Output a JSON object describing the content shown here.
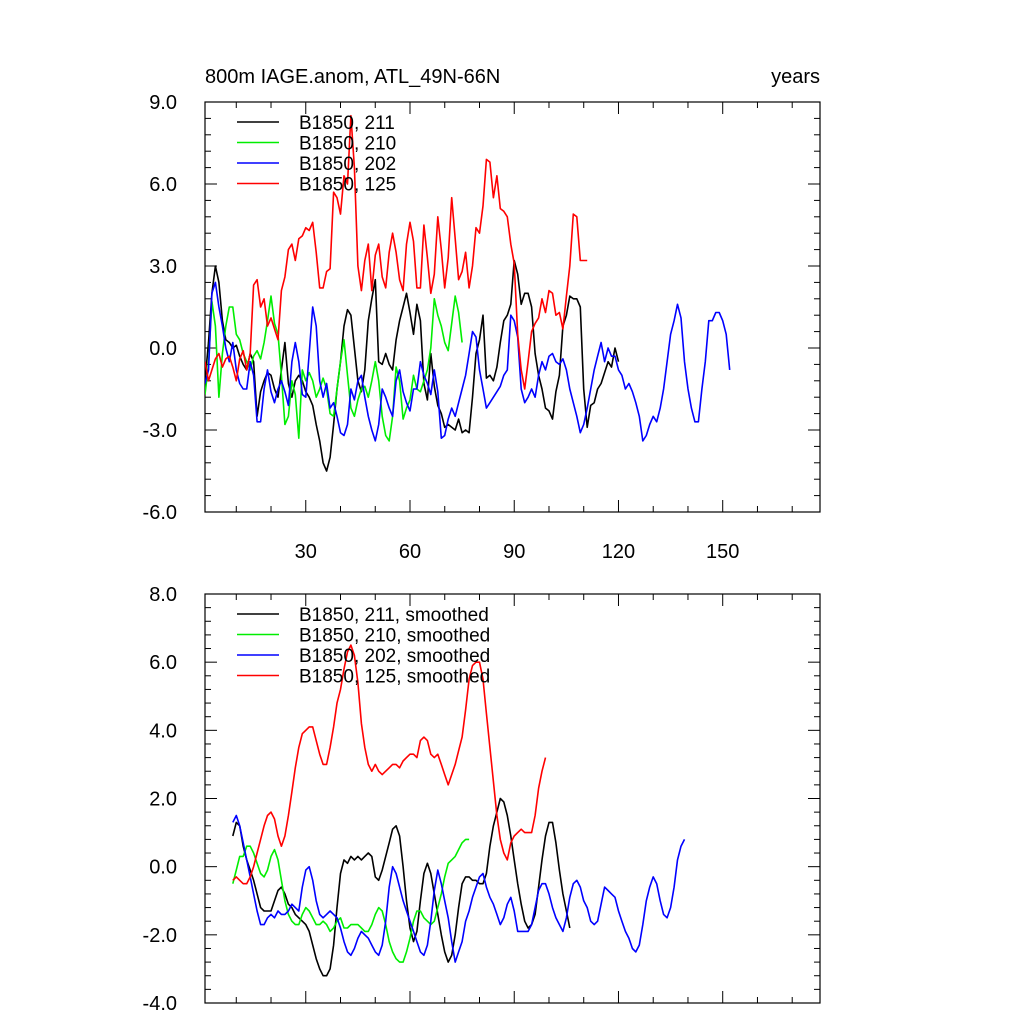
{
  "chart_data": [
    {
      "type": "line",
      "title": "800m IAGE.anom, ATL_49N-66N",
      "right_title": "years",
      "xlabel": "",
      "ylabel": "",
      "xlim": [
        1,
        178
      ],
      "ylim": [
        -6,
        9
      ],
      "y_ticks": [
        "-6.0",
        "-3.0",
        "0.0",
        "3.0",
        "6.0",
        "9.0"
      ],
      "x_ticks": [
        "30",
        "60",
        "90",
        "120",
        "150"
      ],
      "legend_position": "top-left",
      "series": [
        {
          "name": "B1850, 211",
          "color": "#000000",
          "x0": 1,
          "values": [
            -1.2,
            0.2,
            2.0,
            3.0,
            2.4,
            1.0,
            0.3,
            0.2,
            0.0,
            0.1,
            -0.3,
            -0.6,
            -0.8,
            -0.2,
            -0.5,
            -2.5,
            -1.6,
            -1.2,
            -0.9,
            -1.0,
            -1.5,
            -1.8,
            -0.8,
            0.2,
            -1.3,
            -1.8,
            -1.2,
            -1.0,
            -1.2,
            -1.6,
            -1.8,
            -2.1,
            -2.8,
            -3.4,
            -4.2,
            -4.5,
            -4.0,
            -2.8,
            -1.5,
            -0.5,
            0.8,
            1.4,
            1.2,
            0.0,
            -1.2,
            -1.6,
            -0.8,
            1.0,
            1.8,
            2.5,
            -0.5,
            -0.6,
            -0.2,
            -0.6,
            -0.8,
            0.3,
            1.0,
            1.5,
            2.0,
            1.3,
            0.5,
            1.6,
            1.0,
            -1.3,
            -1.9,
            -0.2,
            -1.4,
            -2.1,
            -2.4,
            -2.9,
            -2.8,
            -2.9,
            -3.0,
            -2.6,
            -3.1,
            -3.0,
            -3.1,
            -1.8,
            -0.2,
            0.3,
            1.2,
            -1.1,
            -1.0,
            -1.2,
            -0.7,
            0.2,
            1.0,
            1.2,
            1.6,
            3.2,
            2.7,
            1.6,
            2.0,
            2.0,
            1.5,
            -0.2,
            -1.0,
            -1.5,
            -2.2,
            -2.3,
            -2.6,
            -1.6,
            -1.0,
            0.8,
            1.2,
            1.9,
            1.8,
            1.8,
            1.5,
            -1.5,
            -2.9,
            -2.1,
            -2.0,
            -1.5,
            -1.3,
            -0.9,
            -0.5,
            -0.7,
            0.0,
            -0.5
          ]
        },
        {
          "name": "B1850, 210",
          "color": "#00ee00",
          "x0": 1,
          "values": [
            -1.7,
            -0.6,
            1.7,
            0.8,
            -1.8,
            -0.2,
            0.8,
            1.5,
            1.5,
            0.5,
            0.3,
            -0.2,
            -0.5,
            -0.8,
            -0.3,
            -0.1,
            -0.4,
            0.2,
            1.0,
            1.9,
            0.9,
            0.5,
            -1.0,
            -2.8,
            -2.5,
            -1.2,
            -1.7,
            -3.3,
            -0.8,
            -1.2,
            -0.9,
            -1.2,
            -1.8,
            -1.5,
            -1.1,
            -1.5,
            -2.4,
            -2.5,
            -1.5,
            -0.5,
            0.3,
            -1.0,
            -2.2,
            -2.5,
            -1.9,
            -1.5,
            -1.4,
            -1.8,
            -1.2,
            -0.5,
            -1.2,
            -2.5,
            -3.2,
            -3.4,
            -2.5,
            -0.7,
            -1.2,
            -2.6,
            -2.2,
            -1.9,
            -1.0,
            -1.5,
            -1.6,
            -1.2,
            -0.8,
            0.0,
            1.8,
            1.2,
            0.8,
            0.2,
            -0.1,
            0.9,
            1.9,
            1.3,
            0.2
          ]
        },
        {
          "name": "B1850, 202",
          "color": "#0000ff",
          "x0": 1,
          "values": [
            -1.3,
            -0.8,
            2.0,
            2.4,
            1.5,
            0.8,
            0.0,
            -0.5,
            0.2,
            -0.8,
            -1.3,
            -1.5,
            -1.5,
            -0.5,
            -1.0,
            -2.7,
            -2.7,
            -1.5,
            -0.8,
            -1.6,
            -2.0,
            -1.5,
            -1.2,
            -1.6,
            -2.1,
            -0.5,
            0.2,
            -0.5,
            -1.7,
            -1.8,
            -0.2,
            1.5,
            0.8,
            -1.2,
            -1.8,
            -1.3,
            -2.2,
            -2.0,
            -2.5,
            -3.1,
            -3.2,
            -2.8,
            -1.5,
            -1.9,
            -1.2,
            -1.0,
            -1.8,
            -2.5,
            -3.0,
            -3.4,
            -2.8,
            -1.5,
            -1.8,
            -2.2,
            -2.5,
            -1.2,
            -0.8,
            -1.6,
            -2.0,
            -2.3,
            -1.5,
            -1.5,
            -0.5,
            -1.0,
            -1.3,
            -1.7,
            -0.8,
            -1.6,
            -3.3,
            -3.2,
            -2.6,
            -2.2,
            -2.5,
            -2.0,
            -1.5,
            -1.0,
            -0.2,
            0.6,
            0.4,
            -0.8,
            -1.5,
            -2.2,
            -2.0,
            -1.8,
            -1.6,
            -1.4,
            -1.0,
            -0.8,
            1.2,
            1.0,
            0.4,
            -1.5,
            -2.0,
            -1.8,
            -1.5,
            -1.8,
            -1.0,
            -0.5,
            -0.8,
            -0.3,
            -0.2,
            -0.5,
            -0.6,
            -0.4,
            -0.8,
            -1.5,
            -2.0,
            -2.5,
            -3.1,
            -2.8,
            -2.2,
            -1.5,
            -0.8,
            -0.3,
            0.2,
            -0.5,
            0.0,
            -0.3,
            -0.3,
            -0.8,
            -1.0,
            -1.5,
            -1.3,
            -1.6,
            -2.0,
            -2.5,
            -3.4,
            -3.2,
            -2.8,
            -2.5,
            -2.7,
            -2.2,
            -1.5,
            -0.5,
            0.5,
            1.0,
            1.6,
            1.1,
            -0.5,
            -1.5,
            -2.2,
            -2.7,
            -2.7,
            -1.5,
            -0.5,
            1.0,
            1.0,
            1.3,
            1.3,
            1.0,
            0.5,
            -0.8
          ]
        },
        {
          "name": "B1850, 125",
          "color": "#ff0000",
          "x0": 1,
          "values": [
            -0.5,
            -1.2,
            -0.8,
            -0.4,
            -0.2,
            -0.7,
            -0.4,
            -0.3,
            -0.7,
            -1.2,
            -0.4,
            -0.1,
            -0.8,
            -0.2,
            2.3,
            2.5,
            1.5,
            1.8,
            0.8,
            1.1,
            0.7,
            0.3,
            2.1,
            2.6,
            3.6,
            3.8,
            3.2,
            4.0,
            4.1,
            4.4,
            4.3,
            4.6,
            3.5,
            2.2,
            2.2,
            2.8,
            2.9,
            5.7,
            5.5,
            4.9,
            6.3,
            6.0,
            8.5,
            6.6,
            3.0,
            2.1,
            3.2,
            3.8,
            2.1,
            3.4,
            3.8,
            2.6,
            2.2,
            3.5,
            4.2,
            3.5,
            2.5,
            2.1,
            3.8,
            4.6,
            3.9,
            2.2,
            2.2,
            4.5,
            3.3,
            2.0,
            2.7,
            4.8,
            3.6,
            2.2,
            3.3,
            5.5,
            4.0,
            2.5,
            2.8,
            3.5,
            2.2,
            3.0,
            4.4,
            4.2,
            5.2,
            6.9,
            6.8,
            5.5,
            6.3,
            5.1,
            5.0,
            4.8,
            3.8,
            3.1,
            0.5,
            -0.8,
            -1.5,
            -0.5,
            0.6,
            0.9,
            1.1,
            1.8,
            1.3,
            2.1,
            2.0,
            1.2,
            1.3,
            0.7,
            1.9,
            3.0,
            4.9,
            4.8,
            3.2,
            3.2,
            3.2
          ]
        }
      ]
    },
    {
      "type": "line",
      "title": "",
      "xlabel": "",
      "ylabel": "",
      "xlim": [
        1,
        178
      ],
      "ylim": [
        -4,
        8
      ],
      "y_ticks": [
        "-4.0",
        "-2.0",
        "0.0",
        "2.0",
        "4.0",
        "6.0",
        "8.0"
      ],
      "legend_position": "top-left",
      "series": [
        {
          "name": "B1850, 211, smoothed",
          "color": "#000000",
          "x0": 9,
          "values": [
            0.9,
            1.3,
            1.2,
            0.6,
            0.2,
            -0.1,
            -0.4,
            -0.8,
            -1.2,
            -1.3,
            -1.3,
            -1.3,
            -1.0,
            -0.7,
            -0.6,
            -0.8,
            -1.1,
            -1.2,
            -1.4,
            -1.5,
            -1.6,
            -1.7,
            -1.9,
            -2.3,
            -2.7,
            -3.0,
            -3.2,
            -3.2,
            -3.0,
            -2.3,
            -1.2,
            -0.2,
            0.2,
            0.1,
            0.3,
            0.2,
            0.3,
            0.2,
            0.3,
            0.4,
            0.3,
            -0.3,
            -0.4,
            -0.1,
            0.3,
            0.7,
            1.1,
            1.2,
            0.9,
            0.0,
            -1.0,
            -1.8,
            -2.2,
            -1.9,
            -1.0,
            -0.2,
            0.1,
            -0.2,
            -0.8,
            -1.4,
            -2.0,
            -2.5,
            -2.8,
            -2.6,
            -2.0,
            -1.2,
            -0.5,
            -0.3,
            -0.3,
            -0.4,
            -0.4,
            -0.5,
            -0.5,
            -0.2,
            0.6,
            1.2,
            1.6,
            2.0,
            1.9,
            1.5,
            0.9,
            0.2,
            -0.5,
            -1.1,
            -1.6,
            -1.8,
            -1.7,
            -1.4,
            -0.6,
            0.2,
            0.9,
            1.3,
            1.3,
            0.7,
            -0.1,
            -0.8,
            -1.3,
            -1.8
          ]
        },
        {
          "name": "B1850, 210, smoothed",
          "color": "#00ee00",
          "x0": 9,
          "values": [
            -0.5,
            -0.1,
            0.3,
            0.3,
            0.6,
            0.6,
            0.4,
            0.1,
            -0.2,
            -0.3,
            -0.1,
            0.3,
            0.5,
            0.2,
            -0.4,
            -1.0,
            -1.4,
            -1.6,
            -1.7,
            -1.7,
            -1.4,
            -1.2,
            -1.3,
            -1.5,
            -1.7,
            -1.7,
            -1.6,
            -1.7,
            -1.9,
            -1.8,
            -1.6,
            -1.5,
            -1.8,
            -1.8,
            -1.7,
            -1.7,
            -1.7,
            -1.8,
            -1.9,
            -1.9,
            -1.7,
            -1.4,
            -1.2,
            -1.3,
            -1.7,
            -2.2,
            -2.5,
            -2.7,
            -2.8,
            -2.8,
            -2.5,
            -2.1,
            -1.6,
            -1.3,
            -1.3,
            -1.5,
            -1.6,
            -1.7,
            -1.6,
            -1.2,
            -0.8,
            -0.3,
            0.1,
            0.2,
            0.3,
            0.5,
            0.7,
            0.8,
            0.8
          ]
        },
        {
          "name": "B1850, 202, smoothed",
          "color": "#0000ff",
          "x0": 9,
          "values": [
            1.3,
            1.5,
            1.2,
            0.7,
            0.2,
            -0.3,
            -0.8,
            -1.3,
            -1.7,
            -1.7,
            -1.5,
            -1.4,
            -1.5,
            -1.3,
            -1.4,
            -1.4,
            -1.3,
            -1.1,
            -1.2,
            -1.3,
            -0.6,
            -0.1,
            0.0,
            -0.4,
            -1.0,
            -1.4,
            -1.5,
            -1.4,
            -1.3,
            -1.4,
            -1.5,
            -1.8,
            -2.2,
            -2.5,
            -2.6,
            -2.4,
            -2.1,
            -1.9,
            -2.0,
            -2.1,
            -2.3,
            -2.5,
            -2.6,
            -2.3,
            -1.6,
            -0.6,
            0.0,
            -0.2,
            -0.6,
            -1.0,
            -1.3,
            -1.6,
            -1.9,
            -2.2,
            -2.5,
            -2.6,
            -2.3,
            -1.6,
            -0.7,
            -0.1,
            -0.5,
            -1.0,
            -1.5,
            -2.2,
            -2.8,
            -2.5,
            -2.2,
            -1.6,
            -1.3,
            -0.9,
            -0.6,
            -0.3,
            -0.2,
            -0.6,
            -0.9,
            -1.1,
            -1.4,
            -1.7,
            -1.5,
            -1.1,
            -0.9,
            -1.3,
            -1.9,
            -1.9,
            -1.9,
            -1.9,
            -1.7,
            -1.2,
            -0.7,
            -0.5,
            -0.5,
            -0.8,
            -1.2,
            -1.5,
            -1.7,
            -1.9,
            -1.5,
            -0.9,
            -0.5,
            -0.4,
            -0.6,
            -1.0,
            -1.2,
            -1.6,
            -1.7,
            -1.6,
            -1.1,
            -0.6,
            -0.7,
            -0.8,
            -0.9,
            -1.3,
            -1.6,
            -1.9,
            -2.1,
            -2.4,
            -2.5,
            -2.3,
            -1.7,
            -1.0,
            -0.6,
            -0.3,
            -0.5,
            -1.0,
            -1.4,
            -1.5,
            -1.2,
            -0.6,
            0.2,
            0.6,
            0.8
          ]
        },
        {
          "name": "B1850, 125, smoothed",
          "color": "#ff0000",
          "x0": 9,
          "values": [
            -0.4,
            -0.3,
            -0.4,
            -0.5,
            -0.5,
            -0.3,
            0.0,
            0.4,
            0.8,
            1.2,
            1.5,
            1.6,
            1.4,
            0.9,
            0.6,
            0.9,
            1.5,
            2.2,
            2.9,
            3.5,
            3.9,
            4.0,
            4.1,
            4.1,
            3.7,
            3.3,
            3.0,
            3.0,
            3.5,
            4.1,
            4.8,
            5.2,
            5.8,
            6.3,
            6.5,
            6.2,
            5.4,
            4.2,
            3.5,
            3.0,
            2.8,
            3.0,
            2.8,
            2.7,
            2.8,
            2.9,
            3.0,
            3.0,
            2.9,
            3.1,
            3.2,
            3.3,
            3.3,
            3.2,
            3.7,
            3.8,
            3.7,
            3.3,
            3.2,
            3.3,
            3.0,
            2.7,
            2.4,
            2.7,
            3.0,
            3.4,
            3.8,
            4.6,
            5.5,
            5.9,
            6.0,
            6.0,
            5.5,
            4.5,
            3.5,
            2.5,
            1.5,
            0.8,
            0.4,
            0.2,
            0.7,
            0.9,
            1.0,
            1.1,
            1.0,
            1.0,
            1.0,
            1.5,
            2.3,
            2.8,
            3.2
          ]
        }
      ]
    }
  ]
}
